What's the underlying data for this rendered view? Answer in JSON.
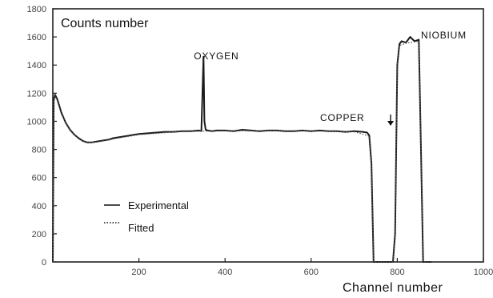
{
  "chart_data": {
    "type": "line",
    "ylabel": "Counts number",
    "xlabel": "Channel number",
    "xlim": [
      0,
      1000
    ],
    "ylim": [
      0,
      1800
    ],
    "x_ticks": [
      200,
      400,
      600,
      800,
      1000
    ],
    "y_ticks": [
      0,
      200,
      400,
      600,
      800,
      1000,
      1200,
      1400,
      1600,
      1800
    ],
    "x_tick_labels": [
      "200",
      "400",
      "600",
      "800",
      "1000"
    ],
    "y_tick_labels": [
      "0",
      "200",
      "400",
      "600",
      "800",
      "1000",
      "1200",
      "1400",
      "1600",
      "1800"
    ],
    "legend": {
      "placement": "lower-left",
      "items": [
        {
          "label": "Experimental",
          "style": "solid"
        },
        {
          "label": "Fitted",
          "style": "dotted"
        }
      ]
    },
    "annotations": [
      {
        "text": "OXYGEN",
        "x": 350,
        "y": 1440
      },
      {
        "text": "COPPER",
        "x": 725,
        "y": 980,
        "arrow": true
      },
      {
        "text": "NIOBIUM",
        "x": 855,
        "y": 1590
      }
    ],
    "series": [
      {
        "name": "Experimental",
        "line_style": "solid",
        "x": [
          0,
          2,
          5,
          10,
          20,
          30,
          40,
          50,
          60,
          70,
          80,
          90,
          100,
          110,
          120,
          130,
          140,
          150,
          160,
          170,
          180,
          190,
          200,
          220,
          240,
          260,
          280,
          300,
          320,
          340,
          345,
          350,
          352,
          355,
          360,
          370,
          380,
          400,
          420,
          440,
          460,
          480,
          500,
          520,
          540,
          560,
          580,
          600,
          620,
          640,
          660,
          680,
          700,
          720,
          730,
          735,
          740,
          745,
          755,
          760,
          765,
          770,
          780,
          790,
          795,
          800,
          805,
          810,
          820,
          830,
          840,
          850,
          855,
          860,
          870,
          880
        ],
        "y": [
          0,
          1150,
          1190,
          1160,
          1060,
          990,
          940,
          905,
          880,
          860,
          850,
          850,
          855,
          860,
          865,
          870,
          880,
          885,
          890,
          895,
          900,
          905,
          910,
          915,
          920,
          925,
          925,
          930,
          930,
          935,
          930,
          1460,
          1000,
          940,
          935,
          930,
          935,
          935,
          930,
          940,
          935,
          930,
          935,
          935,
          930,
          930,
          935,
          930,
          935,
          930,
          930,
          925,
          930,
          925,
          920,
          900,
          700,
          0,
          0,
          0,
          0,
          0,
          0,
          0,
          200,
          1400,
          1550,
          1570,
          1560,
          1600,
          1570,
          1580,
          800,
          0,
          0,
          0
        ]
      },
      {
        "name": "Fitted",
        "line_style": "dotted",
        "x": [
          0,
          2,
          5,
          10,
          20,
          40,
          60,
          80,
          100,
          120,
          150,
          200,
          300,
          400,
          500,
          600,
          700,
          735,
          740,
          745,
          790,
          795,
          800,
          805,
          820,
          850,
          855,
          860,
          880
        ],
        "y": [
          0,
          1140,
          1180,
          1150,
          1050,
          935,
          875,
          848,
          852,
          862,
          880,
          905,
          928,
          932,
          933,
          932,
          926,
          895,
          690,
          0,
          0,
          180,
          1380,
          1540,
          1555,
          1570,
          780,
          0,
          0
        ]
      }
    ]
  }
}
